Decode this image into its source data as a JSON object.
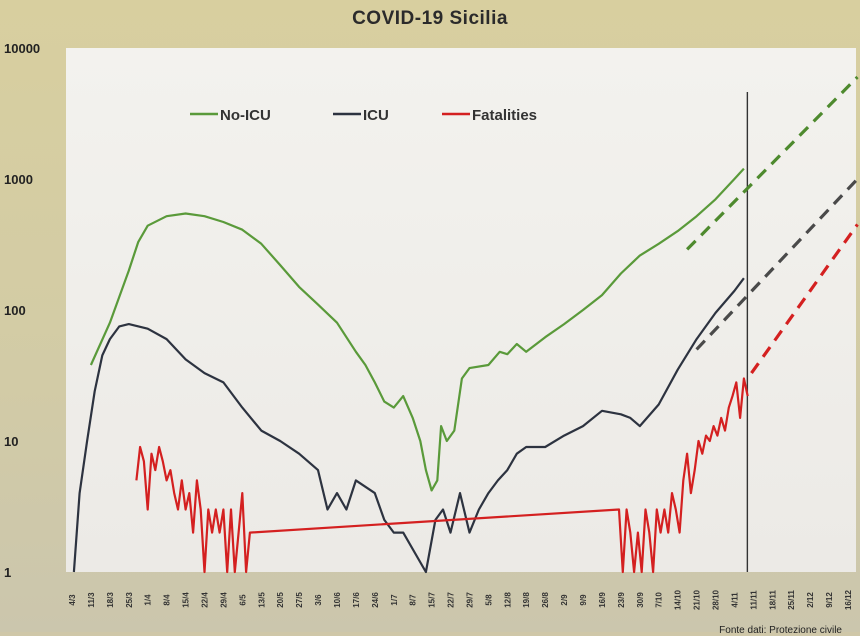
{
  "chart_data": {
    "type": "line",
    "title": "COVID-19  Sicilia",
    "y_scale": "log",
    "ylim": [
      1,
      10000
    ],
    "y_ticks": [
      "1",
      "10",
      "100",
      "1000",
      "10000"
    ],
    "x_tick_labels": [
      "4/3",
      "11/3",
      "18/3",
      "25/3",
      "1/4",
      "8/4",
      "15/4",
      "22/4",
      "29/4",
      "6/5",
      "13/5",
      "20/5",
      "27/5",
      "3/6",
      "10/6",
      "17/6",
      "24/6",
      "1/7",
      "8/7",
      "15/7",
      "22/7",
      "29/7",
      "5/8",
      "12/8",
      "19/8",
      "26/8",
      "2/9",
      "9/9",
      "16/9",
      "23/9",
      "30/9",
      "7/10",
      "14/10",
      "21/10",
      "28/10",
      "4/11",
      "11/11",
      "18/11",
      "25/11",
      "2/12",
      "9/12",
      "16/12"
    ],
    "legend_position": "top-left",
    "legend": [
      {
        "label": "No-ICU",
        "color": "#5a9a3a"
      },
      {
        "label": "ICU",
        "color": "#2d3340"
      },
      {
        "label": "Fatalities",
        "color": "#d42020"
      }
    ],
    "vertical_marker": "11/11",
    "series": [
      {
        "name": "No-ICU",
        "color": "#5a9a3a",
        "points": [
          [
            1,
            38
          ],
          [
            2,
            80
          ],
          [
            3,
            200
          ],
          [
            3.5,
            330
          ],
          [
            4,
            440
          ],
          [
            5,
            520
          ],
          [
            6,
            545
          ],
          [
            7,
            520
          ],
          [
            8,
            470
          ],
          [
            9,
            410
          ],
          [
            10,
            320
          ],
          [
            11,
            220
          ],
          [
            12,
            150
          ],
          [
            13,
            110
          ],
          [
            14,
            80
          ],
          [
            15,
            48
          ],
          [
            15.5,
            38
          ],
          [
            16,
            28
          ],
          [
            16.5,
            20
          ],
          [
            17,
            18
          ],
          [
            17.5,
            22
          ],
          [
            18,
            15
          ],
          [
            18.4,
            10
          ],
          [
            18.7,
            6
          ],
          [
            19,
            4.2
          ],
          [
            19.3,
            5
          ],
          [
            19.5,
            13
          ],
          [
            19.8,
            10
          ],
          [
            20.2,
            12
          ],
          [
            20.6,
            30
          ],
          [
            21,
            36
          ],
          [
            22,
            38
          ],
          [
            22.6,
            48
          ],
          [
            23,
            46
          ],
          [
            23.5,
            55
          ],
          [
            24,
            48
          ],
          [
            25,
            62
          ],
          [
            26,
            78
          ],
          [
            27,
            100
          ],
          [
            28,
            130
          ],
          [
            29,
            190
          ],
          [
            30,
            260
          ],
          [
            31,
            320
          ],
          [
            32,
            400
          ],
          [
            33,
            520
          ],
          [
            34,
            700
          ],
          [
            35,
            1000
          ],
          [
            35.5,
            1200
          ]
        ]
      },
      {
        "name": "ICU",
        "color": "#2d3340",
        "points": [
          [
            0.1,
            1
          ],
          [
            0.4,
            4
          ],
          [
            0.8,
            10
          ],
          [
            1.2,
            24
          ],
          [
            1.6,
            45
          ],
          [
            2,
            60
          ],
          [
            2.5,
            75
          ],
          [
            3,
            78
          ],
          [
            4,
            72
          ],
          [
            5,
            60
          ],
          [
            6,
            42
          ],
          [
            7,
            33
          ],
          [
            8,
            28
          ],
          [
            9,
            18
          ],
          [
            10,
            12
          ],
          [
            11,
            10
          ],
          [
            12,
            8
          ],
          [
            13,
            6
          ],
          [
            13.5,
            3
          ],
          [
            14,
            4
          ],
          [
            14.5,
            3
          ],
          [
            15,
            5
          ],
          [
            16,
            4
          ],
          [
            16.5,
            2.5
          ],
          [
            17,
            2
          ],
          [
            17.5,
            2
          ],
          [
            18.7,
            1
          ],
          [
            19.2,
            2.5
          ],
          [
            19.6,
            3
          ],
          [
            20,
            2
          ],
          [
            20.5,
            4
          ],
          [
            21,
            2
          ],
          [
            21.5,
            3
          ],
          [
            22,
            4
          ],
          [
            22.5,
            5
          ],
          [
            23,
            6
          ],
          [
            23.5,
            8
          ],
          [
            24,
            9
          ],
          [
            25,
            9
          ],
          [
            26,
            11
          ],
          [
            27,
            13
          ],
          [
            28,
            17
          ],
          [
            29,
            16
          ],
          [
            29.5,
            15
          ],
          [
            30,
            13
          ],
          [
            31,
            19
          ],
          [
            32,
            35
          ],
          [
            33,
            60
          ],
          [
            34,
            95
          ],
          [
            35,
            140
          ],
          [
            35.5,
            175
          ]
        ]
      },
      {
        "name": "Fatalities",
        "color": "#d42020",
        "points": [
          [
            3.4,
            5
          ],
          [
            3.6,
            9
          ],
          [
            3.8,
            7
          ],
          [
            4,
            3
          ],
          [
            4.2,
            8
          ],
          [
            4.4,
            6
          ],
          [
            4.6,
            9
          ],
          [
            4.8,
            7
          ],
          [
            5,
            5
          ],
          [
            5.2,
            6
          ],
          [
            5.4,
            4
          ],
          [
            5.6,
            3
          ],
          [
            5.8,
            5
          ],
          [
            6,
            3
          ],
          [
            6.2,
            4
          ],
          [
            6.4,
            2
          ],
          [
            6.6,
            5
          ],
          [
            6.8,
            3
          ],
          [
            7,
            1
          ],
          [
            7.2,
            3
          ],
          [
            7.4,
            2
          ],
          [
            7.6,
            3
          ],
          [
            7.8,
            2
          ],
          [
            8,
            3
          ],
          [
            8.2,
            1
          ],
          [
            8.4,
            3
          ],
          [
            8.6,
            1
          ],
          [
            8.8,
            2
          ],
          [
            9,
            4
          ],
          [
            9.2,
            1
          ],
          [
            9.4,
            2
          ],
          [
            28.9,
            3
          ],
          [
            29.1,
            1
          ],
          [
            29.3,
            3
          ],
          [
            29.5,
            2
          ],
          [
            29.7,
            1
          ],
          [
            29.9,
            2
          ],
          [
            30.1,
            1
          ],
          [
            30.3,
            3
          ],
          [
            30.5,
            2
          ],
          [
            30.7,
            1
          ],
          [
            30.9,
            3
          ],
          [
            31.1,
            2
          ],
          [
            31.3,
            3
          ],
          [
            31.5,
            2
          ],
          [
            31.7,
            4
          ],
          [
            31.9,
            3
          ],
          [
            32.1,
            2
          ],
          [
            32.3,
            5
          ],
          [
            32.5,
            8
          ],
          [
            32.7,
            4
          ],
          [
            32.9,
            6
          ],
          [
            33.1,
            10
          ],
          [
            33.3,
            8
          ],
          [
            33.5,
            11
          ],
          [
            33.7,
            10
          ],
          [
            33.9,
            13
          ],
          [
            34.1,
            11
          ],
          [
            34.3,
            15
          ],
          [
            34.5,
            12
          ],
          [
            34.7,
            18
          ],
          [
            34.9,
            22
          ],
          [
            35.1,
            28
          ],
          [
            35.3,
            15
          ],
          [
            35.5,
            30
          ],
          [
            35.7,
            22
          ]
        ]
      }
    ],
    "projections": [
      {
        "name": "No-ICU",
        "color": "#4e8a2e",
        "from": [
          32.5,
          290
        ],
        "to": [
          41.5,
          6000
        ]
      },
      {
        "name": "ICU",
        "color": "#4a4a4a",
        "from": [
          33,
          50
        ],
        "to": [
          41.5,
          1000
        ]
      },
      {
        "name": "Fatalities",
        "color": "#d42020",
        "from": [
          35.9,
          33
        ],
        "to": [
          41.5,
          450
        ]
      }
    ]
  },
  "footer": "Fonte dati: Protezione civile"
}
